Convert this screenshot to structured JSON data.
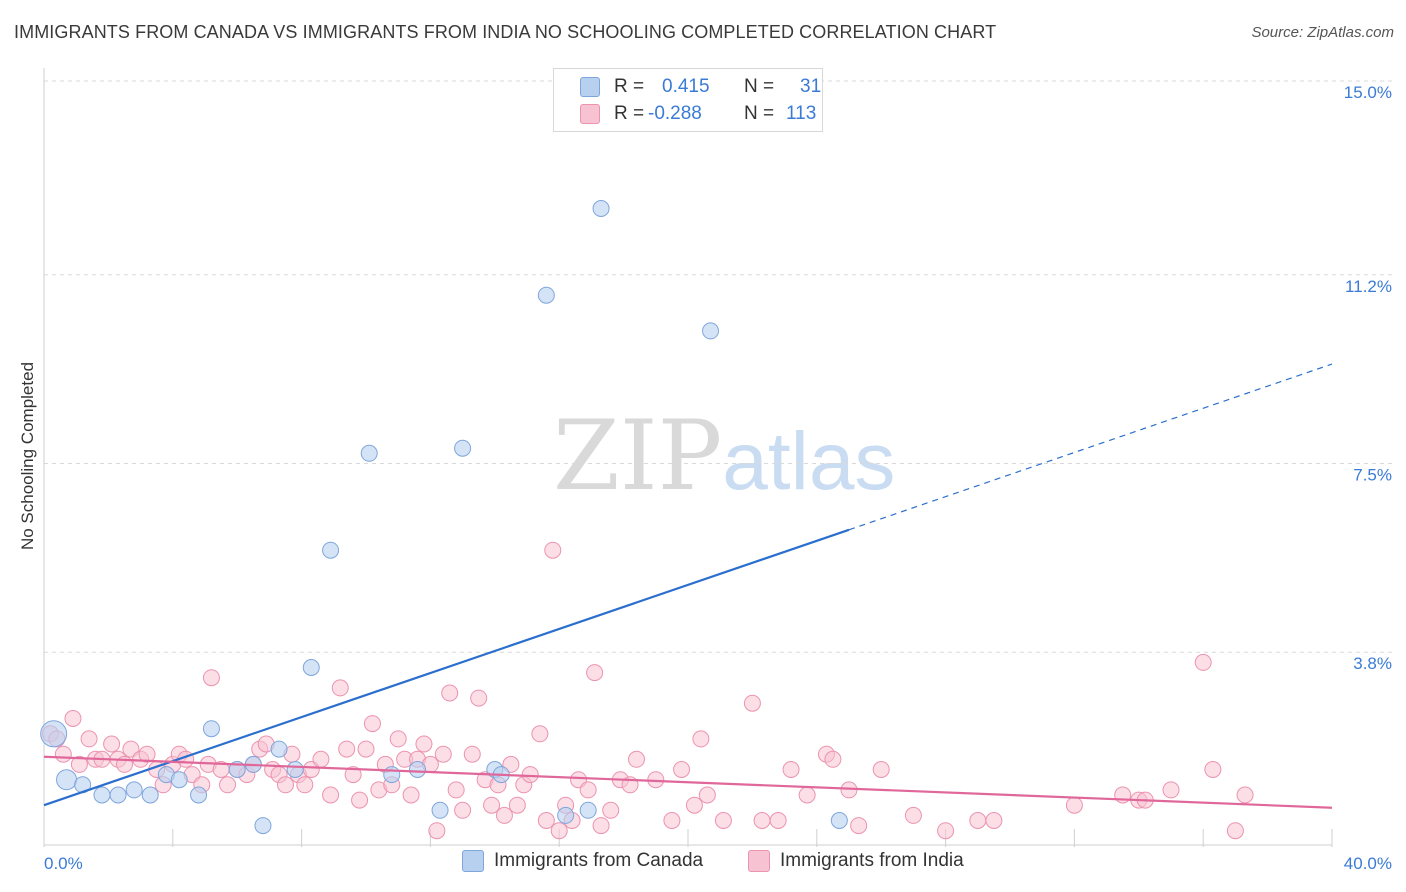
{
  "title": "IMMIGRANTS FROM CANADA VS IMMIGRANTS FROM INDIA NO SCHOOLING COMPLETED CORRELATION CHART",
  "source": "Source: ZipAtlas.com",
  "watermark": {
    "zip": "ZIP",
    "atlas": "atlas"
  },
  "legend": {
    "canada": {
      "r_label": "R =",
      "r_value": "0.415",
      "n_label": "N =",
      "n_value": "31"
    },
    "india": {
      "r_label": "R =",
      "r_value": "-0.288",
      "n_label": "N =",
      "n_value": "113"
    }
  },
  "bottom_legend": {
    "canada": "Immigrants from Canada",
    "india": "Immigrants from India"
  },
  "colors": {
    "canada_fill": "#b8d0f0",
    "canada_stroke": "#7fa6db",
    "canada_line": "#2b6fce",
    "india_fill": "#f7c2d2",
    "india_stroke": "#ec93b0",
    "india_line": "#e0679a",
    "axis_text": "#3a7bd5",
    "grid": "#d9d9d9"
  },
  "chart_data": {
    "type": "scatter",
    "title": "IMMIGRANTS FROM CANADA VS IMMIGRANTS FROM INDIA NO SCHOOLING COMPLETED CORRELATION CHART",
    "xlabel": "",
    "ylabel": "No Schooling Completed",
    "xlim": [
      0,
      40
    ],
    "ylim": [
      0,
      15.8
    ],
    "x_tick_labels": [
      "0.0%",
      "40.0%"
    ],
    "y_ticks": [
      3.8,
      7.5,
      11.2,
      15.0
    ],
    "y_tick_labels": [
      "3.8%",
      "7.5%",
      "11.2%",
      "15.0%"
    ],
    "grid": true,
    "series": [
      {
        "name": "Immigrants from Canada",
        "R": 0.415,
        "N": 31,
        "trend": {
          "x0": 0,
          "y0": 0.8,
          "x1": 25,
          "y1": 6.2,
          "dash_to_x": 40,
          "dash_to_y": 9.45
        },
        "points": [
          [
            0.3,
            2.2
          ],
          [
            0.7,
            1.3
          ],
          [
            1.2,
            1.2
          ],
          [
            1.8,
            1.0
          ],
          [
            2.3,
            1.0
          ],
          [
            2.8,
            1.1
          ],
          [
            3.3,
            1.0
          ],
          [
            3.8,
            1.4
          ],
          [
            4.2,
            1.3
          ],
          [
            4.8,
            1.0
          ],
          [
            5.2,
            2.3
          ],
          [
            6.0,
            1.5
          ],
          [
            6.5,
            1.6
          ],
          [
            6.8,
            0.4
          ],
          [
            7.3,
            1.9
          ],
          [
            7.8,
            1.5
          ],
          [
            8.3,
            3.5
          ],
          [
            8.9,
            5.8
          ],
          [
            10.1,
            7.7
          ],
          [
            10.8,
            1.4
          ],
          [
            11.6,
            1.5
          ],
          [
            12.3,
            0.7
          ],
          [
            13.0,
            7.8
          ],
          [
            14.0,
            1.5
          ],
          [
            14.2,
            1.4
          ],
          [
            15.6,
            10.8
          ],
          [
            16.2,
            0.6
          ],
          [
            16.9,
            0.7
          ],
          [
            17.3,
            12.5
          ],
          [
            20.7,
            10.1
          ],
          [
            24.7,
            0.5
          ]
        ]
      },
      {
        "name": "Immigrants from India",
        "R": -0.288,
        "N": 113,
        "trend": {
          "x0": 0,
          "y0": 1.75,
          "x1": 40,
          "y1": 0.75
        },
        "points": [
          [
            0.2,
            2.2
          ],
          [
            0.4,
            2.1
          ],
          [
            0.6,
            1.8
          ],
          [
            0.9,
            2.5
          ],
          [
            1.1,
            1.6
          ],
          [
            1.4,
            2.1
          ],
          [
            1.6,
            1.7
          ],
          [
            1.8,
            1.7
          ],
          [
            2.1,
            2.0
          ],
          [
            2.3,
            1.7
          ],
          [
            2.5,
            1.6
          ],
          [
            2.7,
            1.9
          ],
          [
            3.0,
            1.7
          ],
          [
            3.2,
            1.8
          ],
          [
            3.5,
            1.5
          ],
          [
            3.7,
            1.2
          ],
          [
            4.0,
            1.6
          ],
          [
            4.2,
            1.8
          ],
          [
            4.4,
            1.7
          ],
          [
            4.6,
            1.4
          ],
          [
            4.9,
            1.2
          ],
          [
            5.1,
            1.6
          ],
          [
            5.2,
            3.3
          ],
          [
            5.5,
            1.5
          ],
          [
            5.7,
            1.2
          ],
          [
            6.0,
            1.5
          ],
          [
            6.3,
            1.4
          ],
          [
            6.5,
            1.6
          ],
          [
            6.7,
            1.9
          ],
          [
            6.9,
            2.0
          ],
          [
            7.1,
            1.5
          ],
          [
            7.3,
            1.4
          ],
          [
            7.5,
            1.2
          ],
          [
            7.7,
            1.8
          ],
          [
            7.9,
            1.4
          ],
          [
            8.1,
            1.2
          ],
          [
            8.3,
            1.5
          ],
          [
            8.6,
            1.7
          ],
          [
            8.9,
            1.0
          ],
          [
            9.2,
            3.1
          ],
          [
            9.4,
            1.9
          ],
          [
            9.6,
            1.4
          ],
          [
            9.8,
            0.9
          ],
          [
            10.0,
            1.9
          ],
          [
            10.2,
            2.4
          ],
          [
            10.4,
            1.1
          ],
          [
            10.6,
            1.6
          ],
          [
            10.8,
            1.2
          ],
          [
            11.0,
            2.1
          ],
          [
            11.2,
            1.7
          ],
          [
            11.4,
            1.0
          ],
          [
            11.6,
            1.7
          ],
          [
            11.8,
            2.0
          ],
          [
            12.0,
            1.6
          ],
          [
            12.2,
            0.3
          ],
          [
            12.4,
            1.8
          ],
          [
            12.6,
            3.0
          ],
          [
            12.8,
            1.1
          ],
          [
            13.0,
            0.7
          ],
          [
            13.3,
            1.8
          ],
          [
            13.5,
            2.9
          ],
          [
            13.7,
            1.3
          ],
          [
            13.9,
            0.8
          ],
          [
            14.1,
            1.2
          ],
          [
            14.3,
            0.6
          ],
          [
            14.5,
            1.6
          ],
          [
            14.7,
            0.8
          ],
          [
            14.9,
            1.2
          ],
          [
            15.1,
            1.4
          ],
          [
            15.4,
            2.2
          ],
          [
            15.6,
            0.5
          ],
          [
            15.8,
            5.8
          ],
          [
            16.0,
            0.3
          ],
          [
            16.2,
            0.8
          ],
          [
            16.4,
            0.5
          ],
          [
            16.6,
            1.3
          ],
          [
            16.9,
            1.1
          ],
          [
            17.1,
            3.4
          ],
          [
            17.3,
            0.4
          ],
          [
            17.6,
            0.7
          ],
          [
            17.9,
            1.3
          ],
          [
            18.2,
            1.2
          ],
          [
            18.4,
            1.7
          ],
          [
            19.0,
            1.3
          ],
          [
            19.5,
            0.5
          ],
          [
            19.8,
            1.5
          ],
          [
            20.2,
            0.8
          ],
          [
            20.4,
            2.1
          ],
          [
            20.6,
            1.0
          ],
          [
            21.1,
            0.5
          ],
          [
            22.0,
            2.8
          ],
          [
            22.3,
            0.5
          ],
          [
            22.8,
            0.5
          ],
          [
            23.2,
            1.5
          ],
          [
            23.7,
            1.0
          ],
          [
            24.3,
            1.8
          ],
          [
            24.5,
            1.7
          ],
          [
            25.0,
            1.1
          ],
          [
            25.3,
            0.4
          ],
          [
            26.0,
            1.5
          ],
          [
            27.0,
            0.6
          ],
          [
            28.0,
            0.3
          ],
          [
            29.0,
            0.5
          ],
          [
            29.5,
            0.5
          ],
          [
            32.0,
            0.8
          ],
          [
            33.5,
            1.0
          ],
          [
            34.0,
            0.9
          ],
          [
            34.2,
            0.9
          ],
          [
            35.0,
            1.1
          ],
          [
            36.0,
            3.6
          ],
          [
            36.3,
            1.5
          ],
          [
            37.0,
            0.3
          ],
          [
            37.3,
            1.0
          ]
        ]
      }
    ]
  }
}
